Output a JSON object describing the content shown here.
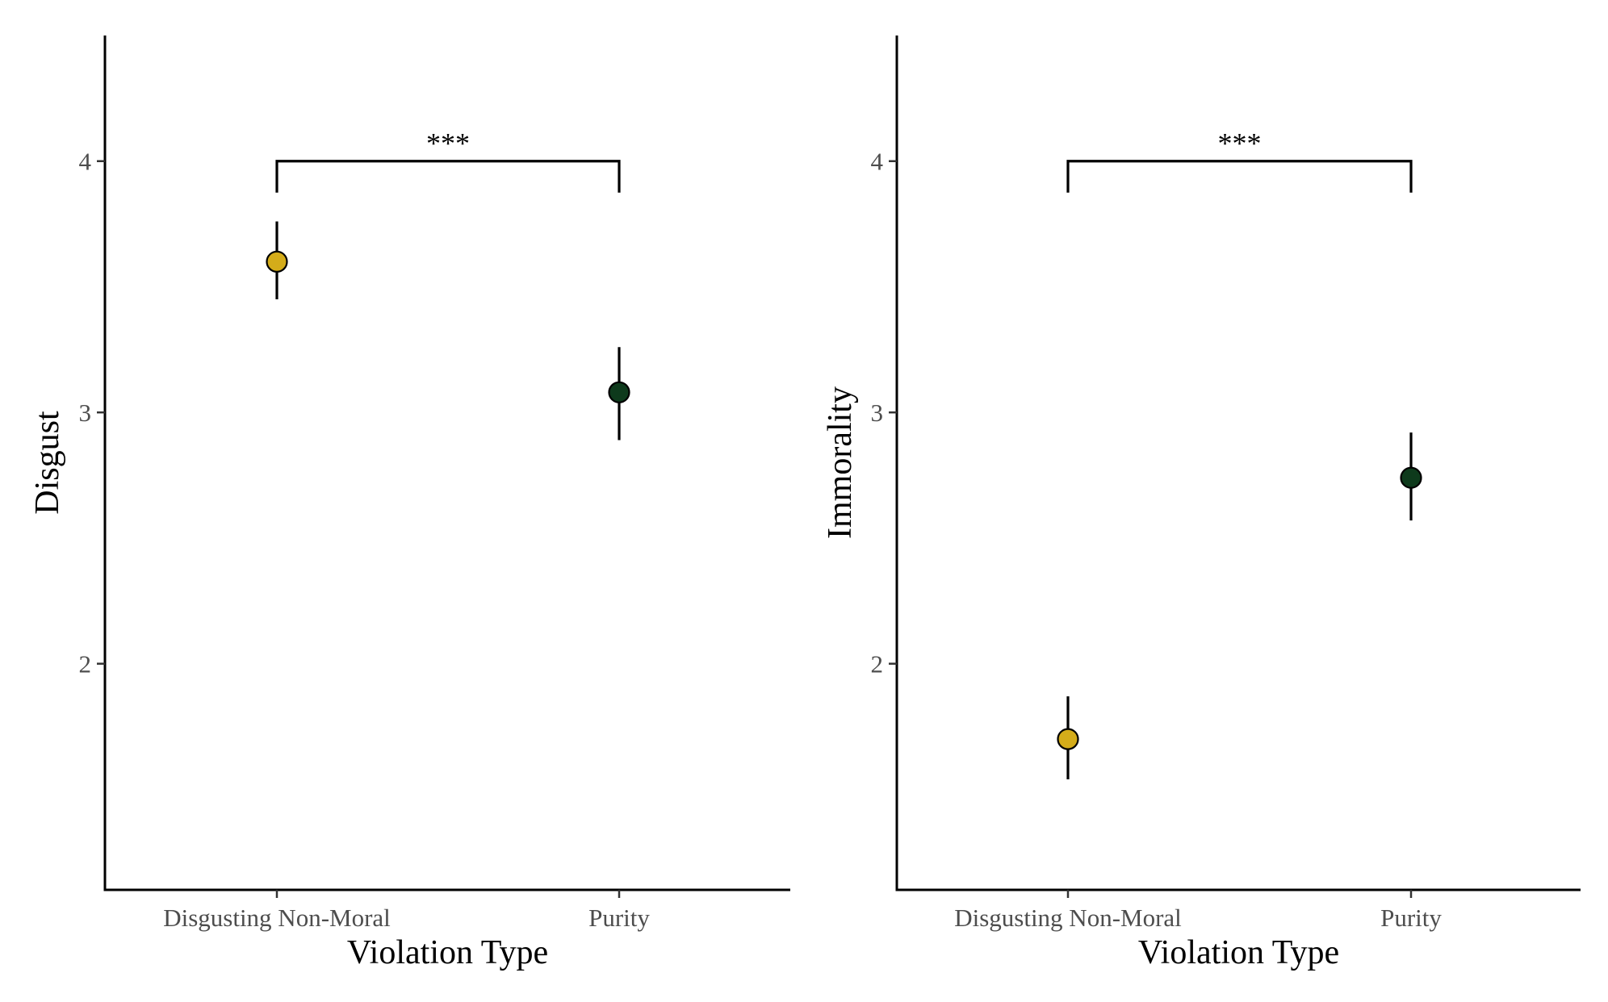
{
  "chart_data": [
    {
      "type": "scatter",
      "xlabel": "Violation Type",
      "ylabel": "Disgust",
      "categories": [
        "Disgusting Non-Moral",
        "Purity"
      ],
      "ylim": [
        1.1,
        4.5
      ],
      "yticks": [
        "2",
        "3",
        "4"
      ],
      "points": [
        {
          "category": "Disgusting Non-Moral",
          "y": 3.6,
          "ci_low": 3.45,
          "ci_high": 3.76,
          "color": "#D4AC1A"
        },
        {
          "category": "Purity",
          "y": 3.08,
          "ci_low": 2.89,
          "ci_high": 3.26,
          "color": "#0E3A1C"
        }
      ],
      "significance": {
        "label": "***",
        "y": 4.0,
        "from": "Disgusting Non-Moral",
        "to": "Purity"
      },
      "grid": false,
      "legend": "none"
    },
    {
      "type": "scatter",
      "xlabel": "Violation Type",
      "ylabel": "Immorality",
      "categories": [
        "Disgusting Non-Moral",
        "Purity"
      ],
      "ylim": [
        1.1,
        4.5
      ],
      "yticks": [
        "2",
        "3",
        "4"
      ],
      "points": [
        {
          "category": "Disgusting Non-Moral",
          "y": 1.7,
          "ci_low": 1.54,
          "ci_high": 1.87,
          "color": "#D4AC1A"
        },
        {
          "category": "Purity",
          "y": 2.74,
          "ci_low": 2.57,
          "ci_high": 2.92,
          "color": "#0E3A1C"
        }
      ],
      "significance": {
        "label": "***",
        "y": 4.0,
        "from": "Disgusting Non-Moral",
        "to": "Purity"
      },
      "grid": false,
      "legend": "none"
    }
  ]
}
